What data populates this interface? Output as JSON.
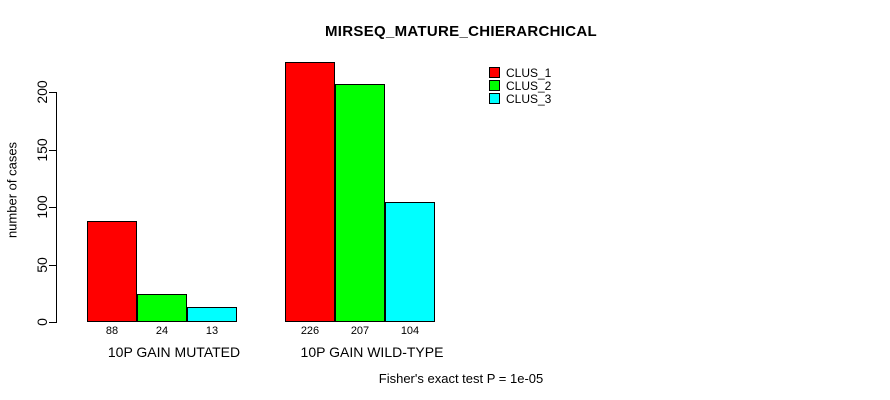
{
  "chart_data": {
    "type": "bar",
    "title": "MIRSEQ_MATURE_CHIERARCHICAL",
    "ylabel": "number of cases",
    "xlabel": "",
    "categories": [
      "10P GAIN MUTATED",
      "10P GAIN WILD-TYPE"
    ],
    "series": [
      {
        "name": "CLUS_1",
        "color": "#ff0000",
        "values": [
          88,
          226
        ]
      },
      {
        "name": "CLUS_2",
        "color": "#00ff00",
        "values": [
          24,
          207
        ]
      },
      {
        "name": "CLUS_3",
        "color": "#00ffff",
        "values": [
          13,
          104
        ]
      }
    ],
    "bar_value_labels": [
      [
        88,
        24,
        13
      ],
      [
        226,
        207,
        104
      ]
    ],
    "yticks": [
      0,
      50,
      100,
      150,
      200
    ],
    "ylim": [
      0,
      230
    ],
    "grid": false,
    "legend_position": "top-right",
    "bar_border_color": "#000000",
    "background_color": "#ffffff",
    "footnote": "Fisher's exact test P = 1e-05"
  }
}
